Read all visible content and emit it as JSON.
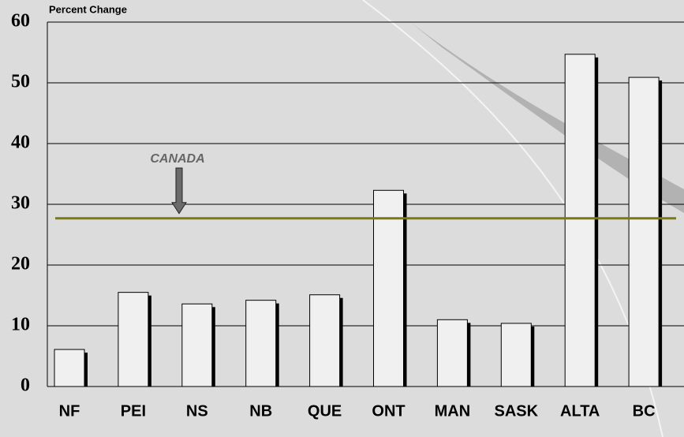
{
  "chart_data": {
    "type": "bar",
    "y_label": "Percent Change",
    "categories": [
      "NF",
      "PEI",
      "NS",
      "NB",
      "QUE",
      "ONT",
      "MAN",
      "SASK",
      "ALTA",
      "BC"
    ],
    "values": [
      6.1,
      15.5,
      13.6,
      14.2,
      15.1,
      32.3,
      11.0,
      10.4,
      54.7,
      50.9
    ],
    "color": "#f0f0f0",
    "ylim": [
      0,
      60
    ],
    "yticks": [
      0,
      10,
      20,
      30,
      40,
      50,
      60
    ],
    "grid": true,
    "reference_line": {
      "label": "CANADA",
      "value": 27.7,
      "color": "#7a7a10"
    }
  }
}
